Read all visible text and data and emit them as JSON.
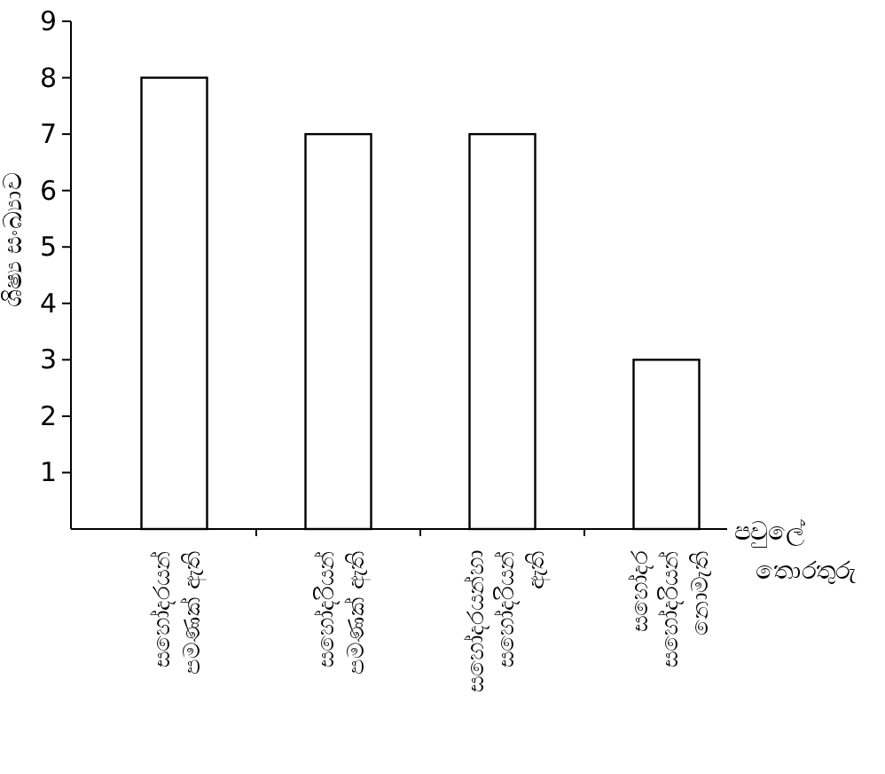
{
  "chart_data": {
    "type": "bar",
    "xlabel": "පවුලේ තොරතුරු",
    "ylabel": "ශිෂ්‍ය සංඛ්‍යාව",
    "categories": [
      "සහෝදරයන් පමණක් ඇති",
      "සහෝදරියන් පමණක් ඇති",
      "සහෝදරයන්හා සහෝදරියන් ඇති",
      "සහෝදර සහෝදරියන් නොමැති"
    ],
    "values": [
      8,
      7,
      7,
      3
    ],
    "color": "#ffffff",
    "ylim": [
      0,
      9
    ],
    "yticks": [
      1,
      2,
      3,
      4,
      5,
      6,
      7,
      8,
      9
    ],
    "grid": false
  }
}
